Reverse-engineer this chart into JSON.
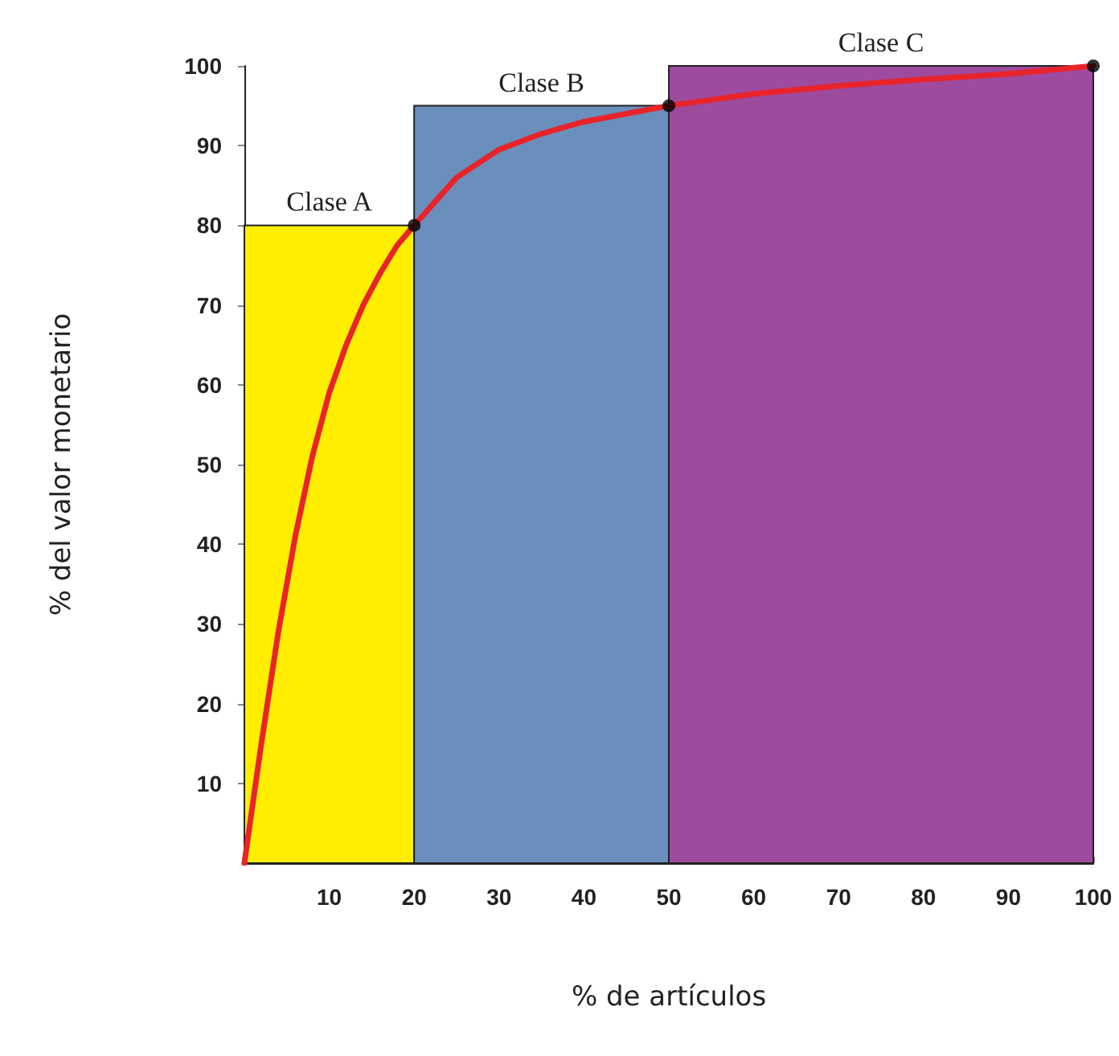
{
  "chart_data": {
    "type": "histogram",
    "xlabel": "% de artículos",
    "ylabel": "% del valor monetario",
    "bins": [
      0,
      20,
      50,
      100
    ],
    "values": [
      80,
      95,
      100
    ],
    "colors": [
      "#ffee00",
      "#6b8fbd",
      "#9e4a9e"
    ],
    "series": [
      {
        "type": "line",
        "color": "#e8242a",
        "marker": "none",
        "x": [
          0,
          2,
          4,
          6,
          8,
          10,
          12,
          14,
          16,
          18,
          20,
          25,
          30,
          35,
          40,
          45,
          50,
          60,
          70,
          80,
          90,
          100
        ],
        "values": [
          0,
          15,
          29,
          41,
          51,
          59,
          65,
          70,
          74,
          77.5,
          80,
          86,
          89.5,
          91.5,
          93,
          94,
          95,
          96.5,
          97.5,
          98.3,
          99,
          100
        ]
      },
      {
        "type": "scatter",
        "color": "#000000",
        "marker": "circle",
        "x": [
          20,
          50,
          100
        ],
        "values": [
          80,
          95,
          100
        ]
      }
    ],
    "annotations": [
      {
        "text": "Clase A",
        "x": 10,
        "y": 80
      },
      {
        "text": "Clase B",
        "x": 35,
        "y": 95
      },
      {
        "text": "Clase C",
        "x": 75,
        "y": 100
      }
    ],
    "xlim": [
      0,
      100
    ],
    "xticks": [
      10,
      20,
      30,
      40,
      50,
      60,
      70,
      80,
      90,
      100
    ],
    "ylim": [
      0,
      100
    ],
    "yticks": [
      10,
      20,
      30,
      40,
      50,
      60,
      70,
      80,
      90,
      100
    ],
    "grid": false
  }
}
